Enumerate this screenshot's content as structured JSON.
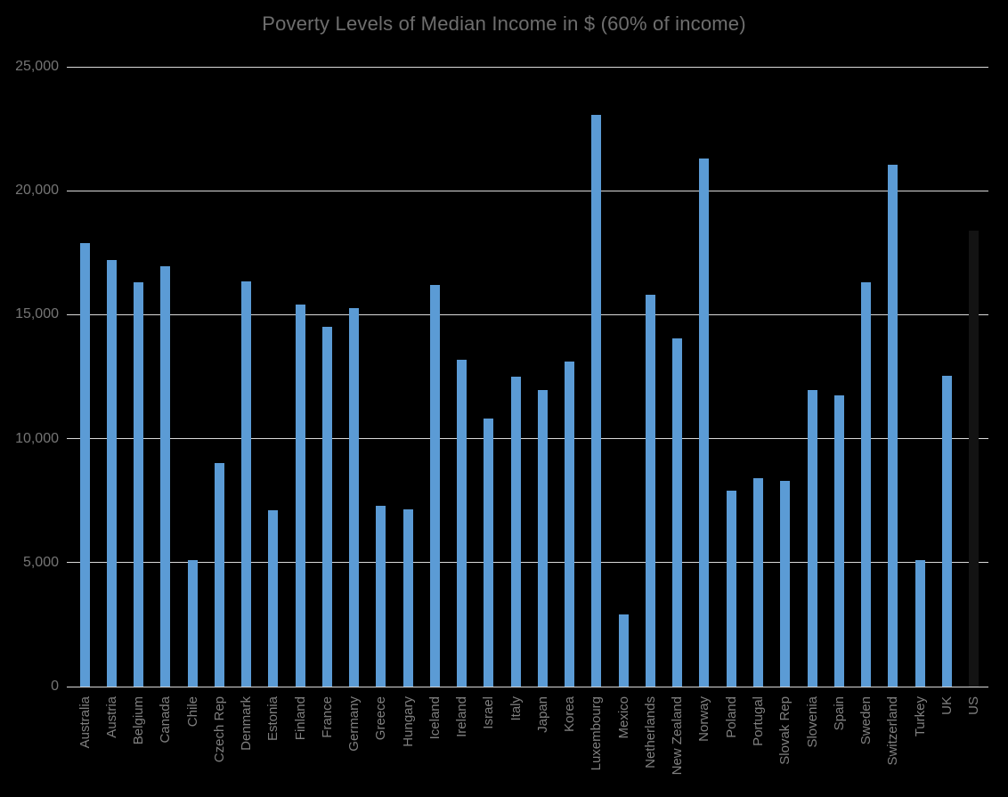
{
  "chart_data": {
    "type": "bar",
    "title": "Poverty Levels of Median Income in $ (60% of income)",
    "xlabel": "",
    "ylabel": "",
    "ylim": [
      0,
      25000
    ],
    "grid": true,
    "legend_position": "none",
    "categories": [
      "Australia",
      "Austria",
      "Belgium",
      "Canada",
      "Chile",
      "Czech Rep",
      "Denmark",
      "Estonia",
      "Finland",
      "France",
      "Germany",
      "Greece",
      "Hungary",
      "Iceland",
      "Ireland",
      "Israel",
      "Italy",
      "Japan",
      "Korea",
      "Luxembourg",
      "Mexico",
      "Netherlands",
      "New Zealand",
      "Norway",
      "Poland",
      "Portugal",
      "Slovak Rep",
      "Slovenia",
      "Spain",
      "Sweden",
      "Switzerland",
      "Turkey",
      "UK",
      "US"
    ],
    "values": [
      17900,
      17200,
      16300,
      16950,
      5100,
      9000,
      16350,
      7100,
      15400,
      14500,
      15250,
      7300,
      7150,
      16200,
      13200,
      10800,
      12500,
      11950,
      13100,
      23050,
      2900,
      15800,
      14050,
      21300,
      7900,
      8400,
      8300,
      11950,
      11750,
      16300,
      21050,
      5100,
      12550,
      18400
    ],
    "ytick_values": [
      0,
      5000,
      10000,
      15000,
      20000,
      25000
    ],
    "ytick_labels": [
      "0",
      "5,000",
      "10,000",
      "15,000",
      "20,000",
      "25,000"
    ],
    "highlight_category": "US",
    "colors": {
      "background": "#000000",
      "bar": "#5B9BD5",
      "highlight_bar": "#131313",
      "gridline": "#D9D9D9",
      "title_text": "#6E6E6E",
      "axis_text": "#757575",
      "category_text": "#7F7F7F"
    }
  }
}
